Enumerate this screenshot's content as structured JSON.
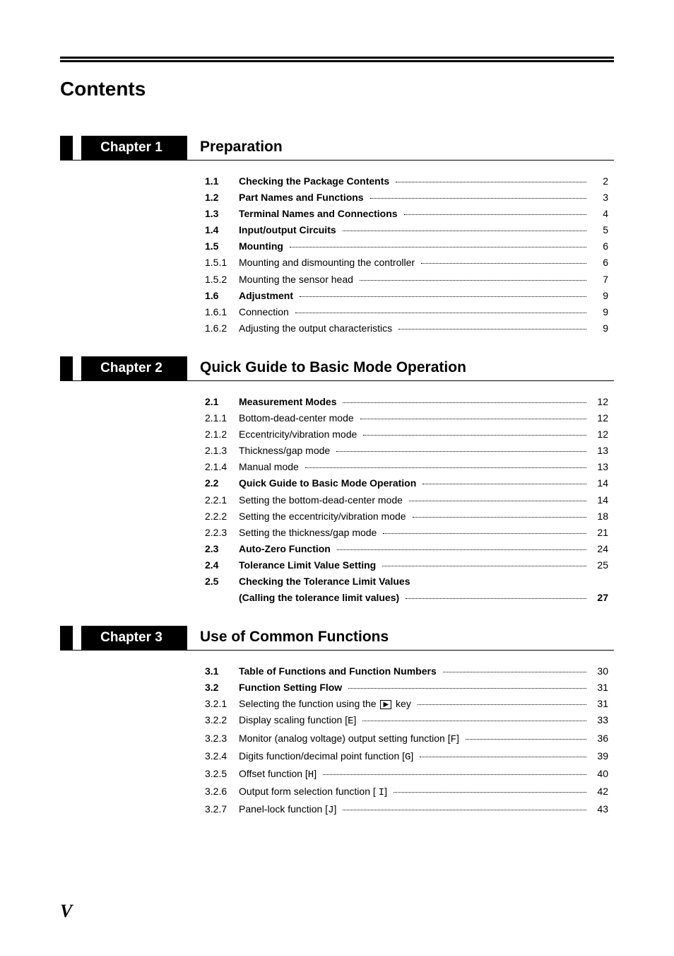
{
  "page_title": "Contents",
  "page_number": "V",
  "chapters": [
    {
      "label": "Chapter 1",
      "title": "Preparation",
      "entries": [
        {
          "num": "1.1",
          "text": "Checking the Package Contents",
          "page": "2",
          "bold": true
        },
        {
          "num": "1.2",
          "text": "Part Names and Functions",
          "page": "3",
          "bold": true
        },
        {
          "num": "1.3",
          "text": "Terminal Names and Connections",
          "page": "4",
          "bold": true
        },
        {
          "num": "1.4",
          "text": "Input/output Circuits",
          "page": "5",
          "bold": true
        },
        {
          "num": "1.5",
          "text": "Mounting",
          "page": "6",
          "bold": true
        },
        {
          "num": "1.5.1",
          "text": "Mounting and dismounting the controller",
          "page": "6",
          "bold": false
        },
        {
          "num": "1.5.2",
          "text": "Mounting the sensor head",
          "page": "7",
          "bold": false
        },
        {
          "num": "1.6",
          "text": "Adjustment",
          "page": "9",
          "bold": true
        },
        {
          "num": "1.6.1",
          "text": "Connection",
          "page": "9",
          "bold": false
        },
        {
          "num": "1.6.2",
          "text": "Adjusting the output characteristics",
          "page": "9",
          "bold": false
        }
      ]
    },
    {
      "label": "Chapter 2",
      "title": "Quick Guide to Basic Mode Operation",
      "entries": [
        {
          "num": "2.1",
          "text": "Measurement Modes",
          "page": "12",
          "bold": true
        },
        {
          "num": "2.1.1",
          "text": "Bottom-dead-center mode",
          "page": "12",
          "bold": false
        },
        {
          "num": "2.1.2",
          "text": "Eccentricity/vibration mode",
          "page": "12",
          "bold": false
        },
        {
          "num": "2.1.3",
          "text": "Thickness/gap mode",
          "page": "13",
          "bold": false
        },
        {
          "num": "2.1.4",
          "text": "Manual mode",
          "page": "13",
          "bold": false
        },
        {
          "num": "2.2",
          "text": "Quick Guide to Basic Mode Operation",
          "page": "14",
          "bold": true
        },
        {
          "num": "2.2.1",
          "text": "Setting the bottom-dead-center mode",
          "page": "14",
          "bold": false
        },
        {
          "num": "2.2.2",
          "text": "Setting the eccentricity/vibration mode",
          "page": "18",
          "bold": false
        },
        {
          "num": "2.2.3",
          "text": "Setting the thickness/gap mode",
          "page": "21",
          "bold": false
        },
        {
          "num": "2.3",
          "text": "Auto-Zero Function",
          "page": "24",
          "bold": true
        },
        {
          "num": "2.4",
          "text": "Tolerance Limit Value Setting",
          "page": "25",
          "bold": true
        },
        {
          "num": "2.5",
          "text": "Checking the Tolerance Limit Values",
          "subtext": "(Calling the tolerance limit values)",
          "page": "27",
          "bold": true
        }
      ]
    },
    {
      "label": "Chapter 3",
      "title": "Use of Common Functions",
      "entries": [
        {
          "num": "3.1",
          "text": "Table of Functions and Function Numbers",
          "page": "30",
          "bold": true
        },
        {
          "num": "3.2",
          "text": "Function Setting Flow",
          "page": "31",
          "bold": true
        },
        {
          "num": "3.2.1",
          "text": "Selecting the function using the ",
          "key": "▶",
          "text_after": " key",
          "page": "31",
          "bold": false
        },
        {
          "num": "3.2.2",
          "text": "Display scaling function [",
          "glyph": "E",
          "text_after": "]",
          "page": "33",
          "bold": false
        },
        {
          "num": "3.2.3",
          "text": "Monitor (analog voltage) output setting function [",
          "glyph": "F",
          "text_after": "]",
          "page": "36",
          "bold": false
        },
        {
          "num": "3.2.4",
          "text": "Digits function/decimal point function [",
          "glyph": "G",
          "text_after": "]",
          "page": "39",
          "bold": false
        },
        {
          "num": "3.2.5",
          "text": "Offset function [",
          "glyph": "H",
          "text_after": "]",
          "page": "40",
          "bold": false
        },
        {
          "num": "3.2.6",
          "text": "Output form selection function [ ",
          "glyph": "I",
          "text_after": "]",
          "page": "42",
          "bold": false
        },
        {
          "num": "3.2.7",
          "text": "Panel-lock function [",
          "glyph": "J",
          "text_after": "]",
          "page": "43",
          "bold": false
        }
      ]
    }
  ]
}
